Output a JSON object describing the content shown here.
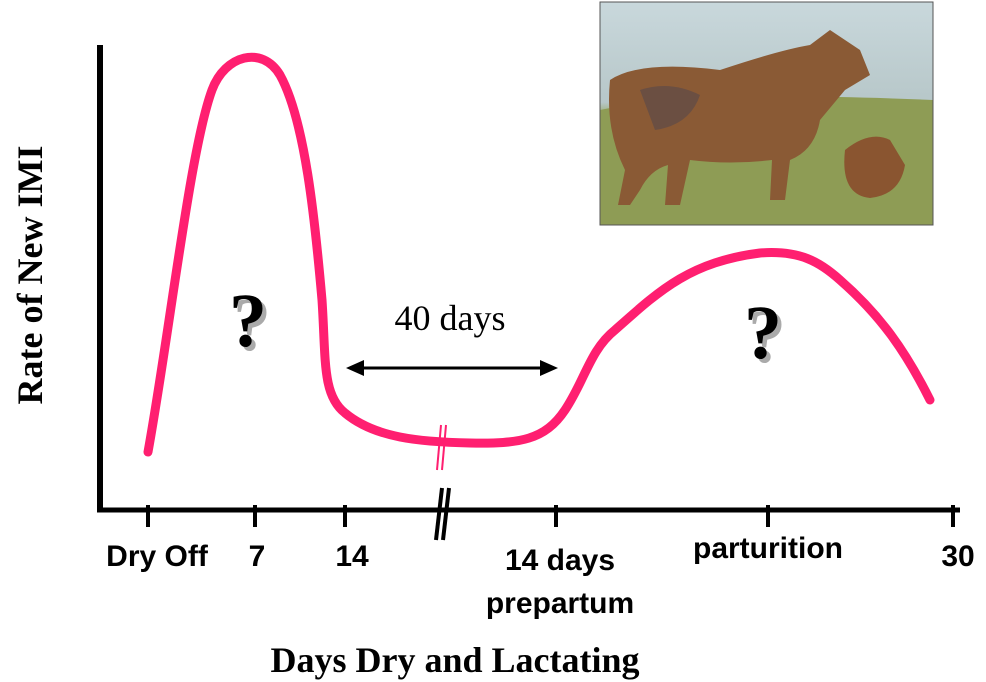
{
  "axes": {
    "y_label": "Rate of New IMI",
    "x_label": "Days Dry and Lactating"
  },
  "x_ticks": [
    "Dry Off",
    "7",
    "14",
    "14 days",
    "prepartum",
    "parturition",
    "30"
  ],
  "annotations": {
    "question_left": "?",
    "question_right": "?",
    "interval": "40 days"
  }
}
